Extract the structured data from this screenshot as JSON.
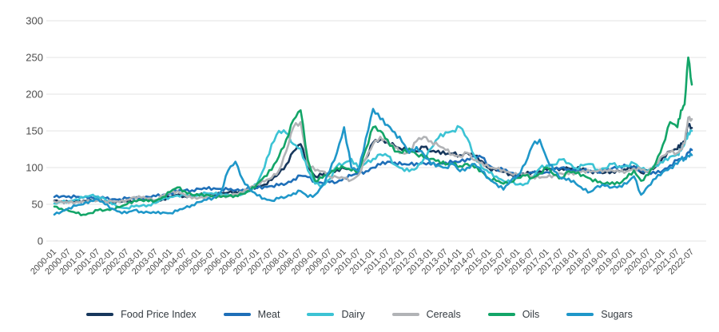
{
  "page": {
    "background": "#ffffff"
  },
  "chart_data": {
    "type": "line",
    "title": "",
    "xlabel": "",
    "ylabel": "",
    "x_start": "2000-01",
    "x_end": "2022-07",
    "sample_interval_months": 3,
    "ylim": [
      0,
      300
    ],
    "y_ticks": [
      0,
      50,
      100,
      150,
      200,
      250,
      300
    ],
    "grid": "horizontal",
    "grid_color": "#e3e3e3",
    "axis_text_color": "#4d4d4d",
    "legend_position": "bottom",
    "x_tick_labels": [
      "2000-01",
      "2000-07",
      "2001-01",
      "2001-07",
      "2002-01",
      "2002-07",
      "2003-01",
      "2003-07",
      "2004-01",
      "2004-07",
      "2005-01",
      "2005-07",
      "2006-01",
      "2006-07",
      "2007-01",
      "2007-07",
      "2008-01",
      "2008-07",
      "2009-01",
      "2009-07",
      "2010-01",
      "2010-07",
      "2011-01",
      "2011-07",
      "2012-01",
      "2012-07",
      "2013-01",
      "2013-07",
      "2014-01",
      "2014-07",
      "2015-01",
      "2015-07",
      "2016-01",
      "2016-07",
      "2017-01",
      "2017-07",
      "2018-01",
      "2018-07",
      "2019-01",
      "2019-07",
      "2020-01",
      "2020-07",
      "2021-01",
      "2021-07",
      "2022-07"
    ],
    "series": [
      {
        "name": "Food Price Index",
        "color": "#17375c",
        "values": [
          55,
          54,
          53,
          54,
          55,
          56,
          56,
          54,
          53,
          53,
          54,
          55,
          56,
          55,
          54,
          57,
          60,
          63,
          61,
          61,
          63,
          63,
          63,
          64,
          66,
          67,
          68,
          71,
          74,
          77,
          83,
          92,
          104,
          122,
          132,
          102,
          88,
          90,
          93,
          97,
          99,
          96,
          99,
          112,
          134,
          138,
          135,
          129,
          124,
          126,
          122,
          128,
          122,
          123,
          118,
          119,
          117,
          120,
          116,
          109,
          99,
          96,
          94,
          91,
          89,
          91,
          94,
          95,
          97,
          98,
          99,
          99,
          98,
          99,
          95,
          93,
          93,
          95,
          95,
          97,
          102,
          93,
          95,
          101,
          114,
          122,
          125,
          133,
          136,
          158,
          154
        ]
      },
      {
        "name": "Meat",
        "color": "#1e6fb8",
        "values": [
          60,
          61,
          61,
          60,
          59,
          60,
          60,
          58,
          57,
          57,
          58,
          58,
          59,
          60,
          61,
          63,
          65,
          68,
          69,
          69,
          71,
          71,
          72,
          71,
          70,
          69,
          70,
          71,
          72,
          74,
          75,
          76,
          78,
          84,
          89,
          87,
          81,
          79,
          80,
          80,
          86,
          89,
          92,
          95,
          100,
          104,
          108,
          107,
          104,
          104,
          106,
          106,
          104,
          105,
          107,
          107,
          108,
          112,
          115,
          114,
          103,
          98,
          97,
          93,
          88,
          90,
          93,
          92,
          94,
          97,
          100,
          98,
          95,
          96,
          96,
          94,
          96,
          99,
          102,
          102,
          100,
          97,
          93,
          92,
          96,
          103,
          110,
          112,
          113,
          121,
          124
        ]
      },
      {
        "name": "Dairy",
        "color": "#3cc3d4",
        "values": [
          51,
          53,
          54,
          57,
          59,
          62,
          61,
          57,
          50,
          46,
          45,
          47,
          48,
          49,
          52,
          57,
          60,
          62,
          62,
          61,
          64,
          65,
          64,
          64,
          63,
          62,
          64,
          70,
          78,
          100,
          132,
          150,
          147,
          132,
          126,
          96,
          78,
          76,
          84,
          102,
          106,
          112,
          99,
          106,
          112,
          118,
          116,
          104,
          99,
          95,
          99,
          112,
          126,
          140,
          148,
          150,
          155,
          140,
          116,
          100,
          93,
          88,
          82,
          80,
          77,
          78,
          86,
          99,
          103,
          104,
          111,
          106,
          99,
          103,
          105,
          97,
          99,
          105,
          101,
          103,
          106,
          98,
          97,
          102,
          107,
          115,
          118,
          123,
          132,
          147,
          150
        ]
      },
      {
        "name": "Cereals",
        "color": "#b1b3b6",
        "values": [
          54,
          53,
          52,
          53,
          54,
          54,
          55,
          54,
          54,
          53,
          56,
          60,
          59,
          58,
          56,
          62,
          66,
          68,
          63,
          58,
          59,
          60,
          60,
          60,
          62,
          64,
          66,
          73,
          78,
          81,
          86,
          96,
          122,
          155,
          162,
          105,
          96,
          95,
          88,
          87,
          85,
          83,
          90,
          112,
          132,
          142,
          135,
          127,
          120,
          120,
          136,
          142,
          136,
          130,
          124,
          118,
          115,
          120,
          110,
          107,
          100,
          98,
          97,
          92,
          90,
          92,
          88,
          86,
          87,
          90,
          92,
          91,
          93,
          96,
          94,
          95,
          97,
          96,
          94,
          95,
          99,
          97,
          94,
          105,
          116,
          121,
          120,
          125,
          133,
          168,
          166
        ]
      },
      {
        "name": "Oils",
        "color": "#13a568",
        "values": [
          47,
          44,
          41,
          38,
          36,
          38,
          42,
          42,
          44,
          46,
          50,
          55,
          56,
          54,
          55,
          60,
          67,
          73,
          68,
          63,
          62,
          63,
          61,
          60,
          61,
          62,
          64,
          68,
          78,
          88,
          97,
          115,
          138,
          165,
          178,
          110,
          82,
          86,
          92,
          100,
          100,
          96,
          96,
          125,
          155,
          150,
          138,
          122,
          120,
          126,
          118,
          114,
          112,
          110,
          104,
          105,
          102,
          105,
          100,
          95,
          85,
          82,
          78,
          81,
          86,
          89,
          86,
          92,
          100,
          90,
          86,
          95,
          92,
          90,
          85,
          80,
          78,
          80,
          78,
          86,
          96,
          82,
          90,
          106,
          131,
          162,
          155,
          178,
          186,
          250,
          213
        ]
      },
      {
        "name": "Sugars",
        "color": "#1f97c9",
        "values": [
          36,
          40,
          45,
          48,
          50,
          55,
          57,
          50,
          44,
          40,
          38,
          42,
          40,
          39,
          38,
          39,
          38,
          41,
          45,
          49,
          53,
          56,
          59,
          67,
          96,
          108,
          84,
          70,
          62,
          58,
          55,
          58,
          60,
          65,
          68,
          60,
          63,
          75,
          95,
          120,
          155,
          100,
          95,
          140,
          180,
          166,
          158,
          148,
          135,
          120,
          128,
          118,
          105,
          103,
          100,
          105,
          95,
          100,
          105,
          95,
          85,
          78,
          70,
          82,
          90,
          105,
          130,
          138,
          112,
          95,
          85,
          85,
          78,
          70,
          67,
          75,
          75,
          73,
          75,
          78,
          88,
          63,
          75,
          85,
          94,
          100,
          105,
          112,
          112,
          116,
          117
        ]
      }
    ]
  }
}
